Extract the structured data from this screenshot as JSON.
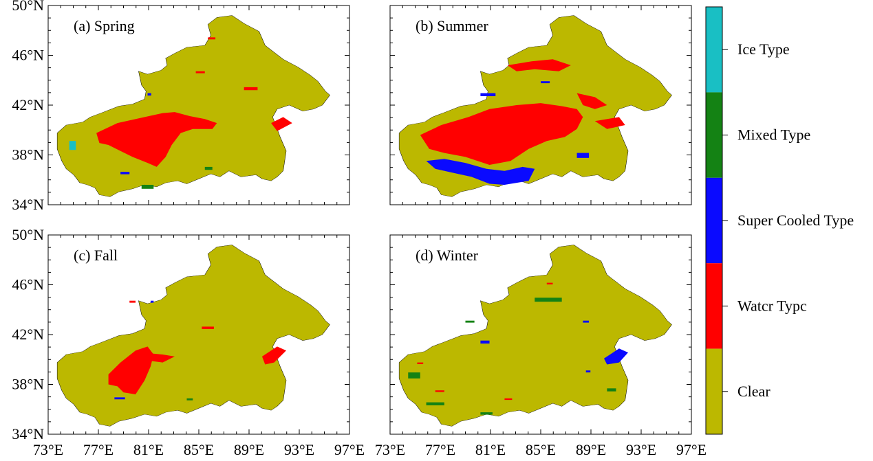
{
  "figure": {
    "panels": [
      {
        "label": "(a) Spring"
      },
      {
        "label": "(b) Summer"
      },
      {
        "label": "(c) Fall"
      },
      {
        "label": "(d) Winter"
      }
    ],
    "x_tick_labels": [
      "73°E",
      "77°E",
      "81°E",
      "85°E",
      "89°E",
      "93°E",
      "97°E"
    ],
    "y_tick_labels": [
      "34°N",
      "38°N",
      "42°N",
      "46°N",
      "50°N"
    ]
  },
  "legend": {
    "items": [
      {
        "label": "Ice Type",
        "color": "#19bfc4"
      },
      {
        "label": "Mixed Type",
        "color": "#148214"
      },
      {
        "label": "Super Cooled Type",
        "color": "#0a0aff"
      },
      {
        "label": "Watcr Typc",
        "color": "#ff0000"
      },
      {
        "label": "Clear",
        "color": "#bcb800"
      }
    ]
  },
  "colors": {
    "clear": "#bcb800",
    "water": "#ff0000",
    "supercooled": "#0a0aff",
    "mixed": "#148214",
    "ice": "#19bfc4"
  },
  "chart_data": {
    "type": "map",
    "x_range_deg_e": [
      73,
      97
    ],
    "y_range_deg_n": [
      34,
      50
    ],
    "x_ticks": [
      73,
      77,
      81,
      85,
      89,
      93,
      97
    ],
    "y_ticks": [
      34,
      38,
      42,
      46,
      50
    ],
    "categories": [
      "Ice Type",
      "Mixed Type",
      "Super Cooled Type",
      "Watcr Typc",
      "Clear"
    ]
  }
}
